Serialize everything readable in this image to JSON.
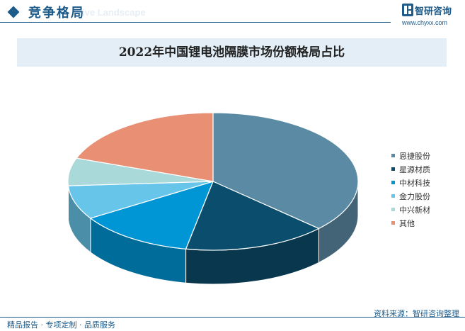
{
  "header": {
    "section_title": "竞争格局",
    "section_subtitle": "ive Landscape",
    "brand_name": "智研咨询",
    "brand_url": "www.chyxx.com"
  },
  "footer": {
    "services": "精品报告 · 专项定制 · 品质服务",
    "source": "资料来源：智研咨询整理"
  },
  "colors": {
    "brand": "#1d5b8a",
    "title_band": "#e3eef6"
  },
  "chart_data": {
    "type": "pie",
    "title": "2022年中国锂电池隔膜市场份额格局占比",
    "legend_position": "right",
    "series": [
      {
        "name": "恩捷股份",
        "value": 37.0,
        "color": "#5b8ba4"
      },
      {
        "name": "星源材质",
        "value": 16.0,
        "color": "#0b4d6d"
      },
      {
        "name": "中材科技",
        "value": 13.0,
        "color": "#0096d6"
      },
      {
        "name": "金力股份",
        "value": 8.0,
        "color": "#67c5ea"
      },
      {
        "name": "中兴新材",
        "value": 6.5,
        "color": "#a9d9d8"
      },
      {
        "name": "其他",
        "value": 19.5,
        "color": "#e98f73"
      }
    ]
  }
}
